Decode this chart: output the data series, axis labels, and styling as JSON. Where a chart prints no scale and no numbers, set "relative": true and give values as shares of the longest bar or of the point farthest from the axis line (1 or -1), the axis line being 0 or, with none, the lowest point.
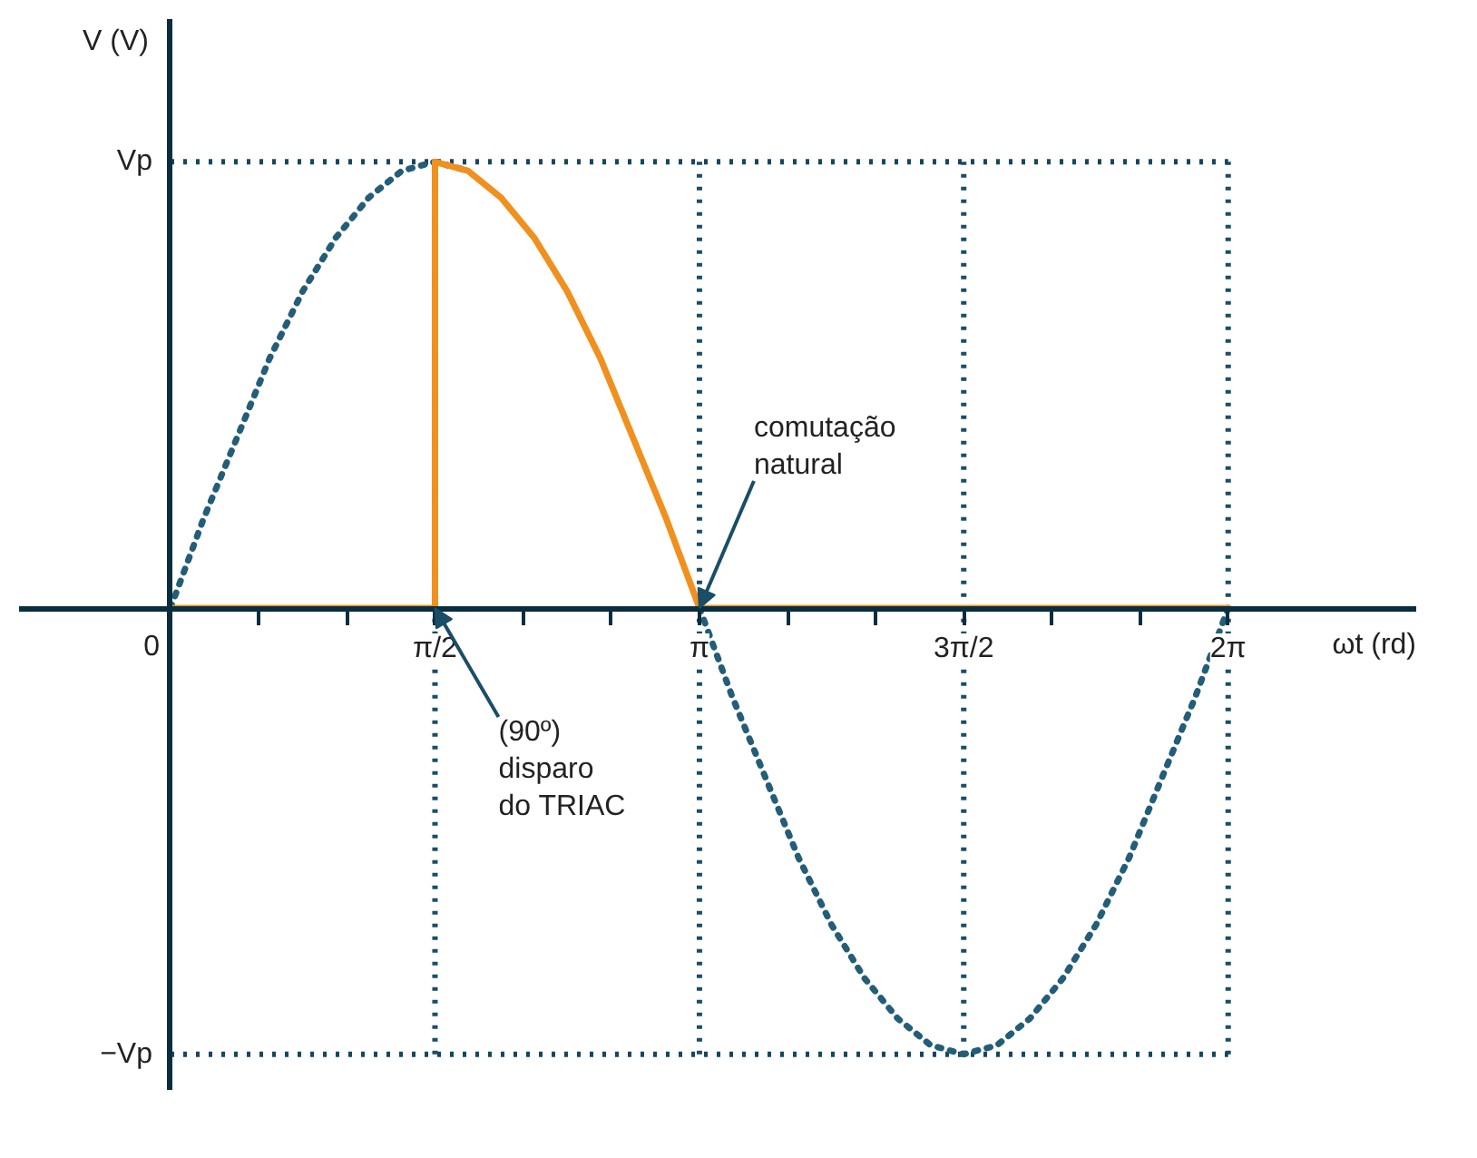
{
  "chart_data": {
    "type": "line",
    "xlabel": "ωt (rd)",
    "ylabel": "V (V)",
    "xlim": [
      -0.9,
      7.4
    ],
    "relative": true,
    "xticks": [
      0,
      {
        "value": 0.524,
        "label": null
      },
      {
        "value": 1.047,
        "label": null
      },
      {
        "value": 1.571,
        "label": "π/2"
      },
      {
        "value": 2.094,
        "label": null
      },
      {
        "value": 2.618,
        "label": null
      },
      {
        "value": 3.142,
        "label": "π"
      },
      {
        "value": 3.665,
        "label": null
      },
      {
        "value": 4.189,
        "label": null
      },
      {
        "value": 4.712,
        "label": "3π/2"
      },
      {
        "value": 5.236,
        "label": null
      },
      {
        "value": 5.76,
        "label": null
      },
      {
        "value": 6.283,
        "label": "2π"
      }
    ],
    "grid": false,
    "series": [
      {
        "color": "#235d78",
        "line_style": "dotted",
        "x": [
          0,
          0.196,
          0.393,
          0.589,
          0.785,
          0.982,
          1.178,
          1.374,
          1.571,
          1.767,
          1.963,
          2.16,
          2.356,
          2.553,
          2.749,
          2.945,
          3.142,
          3.338,
          3.534,
          3.731,
          3.927,
          4.123,
          4.32,
          4.516,
          4.712,
          4.909,
          5.105,
          5.301,
          5.498,
          5.694,
          5.89,
          6.087,
          6.283
        ],
        "values": [
          0,
          0.2,
          0.38,
          0.56,
          0.71,
          0.83,
          0.92,
          0.98,
          1,
          0.98,
          null,
          null,
          null,
          null,
          null,
          null,
          0,
          -0.2,
          -0.38,
          -0.56,
          -0.71,
          -0.83,
          -0.92,
          -0.98,
          -1,
          -0.98,
          -0.92,
          -0.83,
          -0.71,
          -0.56,
          -0.38,
          -0.2,
          0
        ]
      },
      {
        "color": "#f0901e",
        "line_style": "solid",
        "x": [
          0,
          1.571,
          1.571,
          1.767,
          1.963,
          2.16,
          2.356,
          2.553,
          2.749,
          2.945,
          3.142,
          6.283
        ],
        "values": [
          0,
          0,
          1,
          0.98,
          0.92,
          0.83,
          0.71,
          0.56,
          0.38,
          0.2,
          0,
          0
        ]
      }
    ],
    "ref_lines": [
      {
        "axis": "x",
        "value": 1.571,
        "color": "#1a4e66",
        "line_style": "dotted"
      },
      {
        "axis": "x",
        "value": 3.142,
        "color": "#1a4e66",
        "line_style": "dotted"
      },
      {
        "axis": "x",
        "value": 4.712,
        "color": "#1a4e66",
        "line_style": "dotted"
      },
      {
        "axis": "x",
        "value": 6.283,
        "color": "#1a4e66",
        "line_style": "dotted"
      },
      {
        "axis": "y",
        "value": 1,
        "label": "Vp",
        "color": "#164660",
        "line_style": "dotted"
      },
      {
        "axis": "y",
        "value": -1,
        "label": "−Vp",
        "color": "#164660",
        "line_style": "dotted"
      }
    ],
    "annotations": [
      {
        "text": "comutação\nnatural",
        "x": 3.142,
        "y": 0
      },
      {
        "text": "(90º)\ndisparo\ndo TRIAC",
        "x": 1.571,
        "y": 0
      }
    ]
  }
}
